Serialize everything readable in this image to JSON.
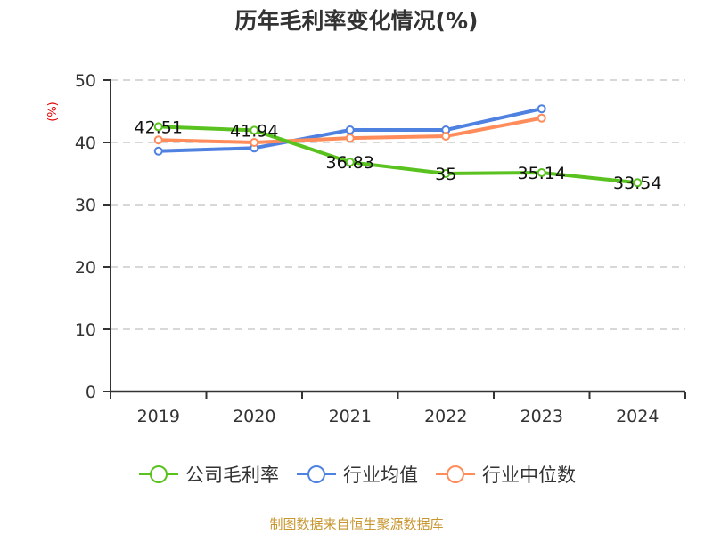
{
  "title": "历年毛利率变化情况(%)",
  "source": "制图数据来自恒生聚源数据库",
  "legend": [
    {
      "name": "公司毛利率",
      "color": "#5ac21f"
    },
    {
      "name": "行业均值",
      "color": "#4f81e0"
    },
    {
      "name": "行业中位数",
      "color": "#ff8c5a"
    }
  ],
  "chart_data": {
    "type": "line",
    "title": "历年毛利率变化情况(%)",
    "xlabel": "",
    "ylabel": "(%)",
    "ylim": [
      0,
      50
    ],
    "yticks": [
      0,
      10,
      20,
      30,
      40,
      50
    ],
    "grid": "horizontal dashed",
    "legend_position": "bottom",
    "categories": [
      "2019",
      "2020",
      "2021",
      "2022",
      "2023",
      "2024"
    ],
    "series": [
      {
        "name": "公司毛利率",
        "color": "#5ac21f",
        "values": [
          42.51,
          41.94,
          36.83,
          35,
          35.14,
          33.54
        ],
        "labels": [
          "42.51",
          "41.94",
          "36.83",
          "35",
          "35.14",
          "33.54"
        ]
      },
      {
        "name": "行业均值",
        "color": "#4f81e0",
        "values": [
          38.6,
          39.1,
          42.0,
          42.0,
          45.4,
          null
        ]
      },
      {
        "name": "行业中位数",
        "color": "#ff8c5a",
        "values": [
          40.4,
          40.0,
          40.7,
          41.0,
          43.9,
          null
        ]
      }
    ]
  }
}
